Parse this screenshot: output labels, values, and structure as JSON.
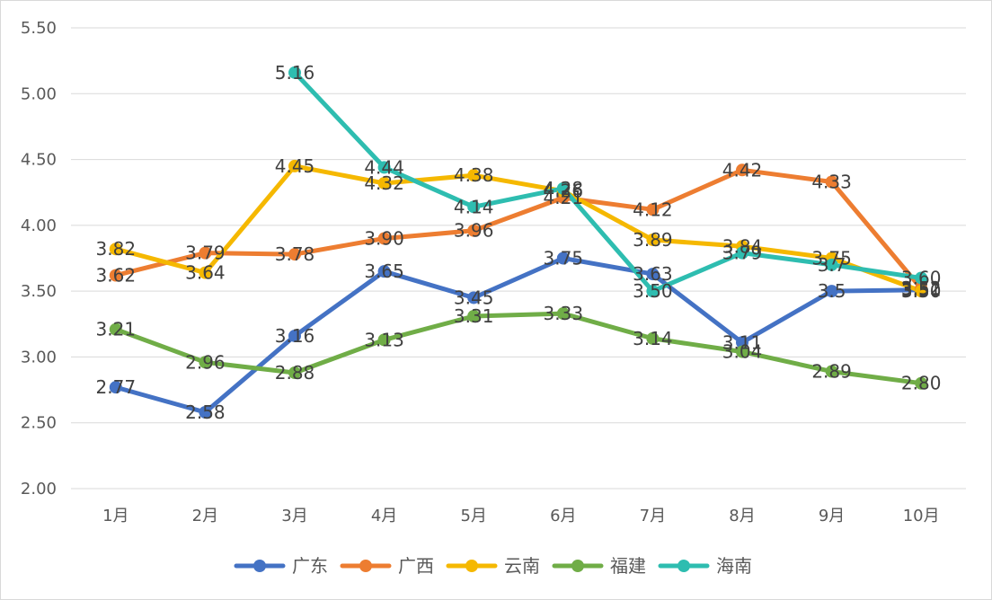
{
  "chart_data": {
    "type": "line",
    "title": "",
    "xlabel": "",
    "ylabel": "",
    "categories": [
      "1月",
      "2月",
      "3月",
      "4月",
      "5月",
      "6月",
      "7月",
      "8月",
      "9月",
      "10月"
    ],
    "ylim": [
      2.0,
      5.5
    ],
    "yticks": [
      "2.00",
      "2.50",
      "3.00",
      "3.50",
      "4.00",
      "4.50",
      "5.00",
      "5.50"
    ],
    "grid": true,
    "legend_position": "bottom",
    "series": [
      {
        "name": "广东",
        "color": "#4472C4",
        "values": [
          2.77,
          2.58,
          3.16,
          3.65,
          3.45,
          3.75,
          3.63,
          3.11,
          3.5,
          3.51
        ],
        "labels": [
          "2.77",
          "2.58",
          "3.16",
          "3.65",
          "3.45",
          "3.75",
          "3.63",
          "3.11",
          "3.5",
          "3.51"
        ]
      },
      {
        "name": "广西",
        "color": "#ED7D31",
        "values": [
          3.62,
          3.79,
          3.78,
          3.9,
          3.96,
          4.21,
          4.12,
          4.42,
          4.33,
          3.52
        ],
        "labels": [
          "3.62",
          "3.79",
          "3.78",
          "3.90",
          "3.96",
          "4.21",
          "4.12",
          "4.42",
          "4.33",
          "3.52"
        ]
      },
      {
        "name": "云南",
        "color": "#F5B800",
        "values": [
          3.82,
          3.64,
          4.45,
          4.32,
          4.38,
          4.26,
          3.89,
          3.84,
          3.75,
          3.5
        ],
        "labels": [
          "3.82",
          "3.64",
          "4.45",
          "4.32",
          "4.38",
          "4.26",
          "3.89",
          "3.84",
          "3.75",
          "3.50"
        ]
      },
      {
        "name": "福建",
        "color": "#70AD47",
        "values": [
          3.21,
          2.96,
          2.88,
          3.13,
          3.31,
          3.33,
          3.14,
          3.04,
          2.89,
          2.8
        ],
        "labels": [
          "3.21",
          "2.96",
          "2.88",
          "3.13",
          "3.31",
          "3.33",
          "3.14",
          "3.04",
          "2.89",
          "2.80"
        ]
      },
      {
        "name": "海南",
        "color": "#2EBDB0",
        "start_index": 2,
        "values": [
          null,
          null,
          5.16,
          4.44,
          4.14,
          4.28,
          3.5,
          3.79,
          3.7,
          3.6
        ],
        "labels": [
          null,
          null,
          "5.16",
          "4.44",
          "4.14",
          "4.28",
          "3.50",
          "3.79",
          "3.7",
          "3.60"
        ]
      }
    ]
  }
}
